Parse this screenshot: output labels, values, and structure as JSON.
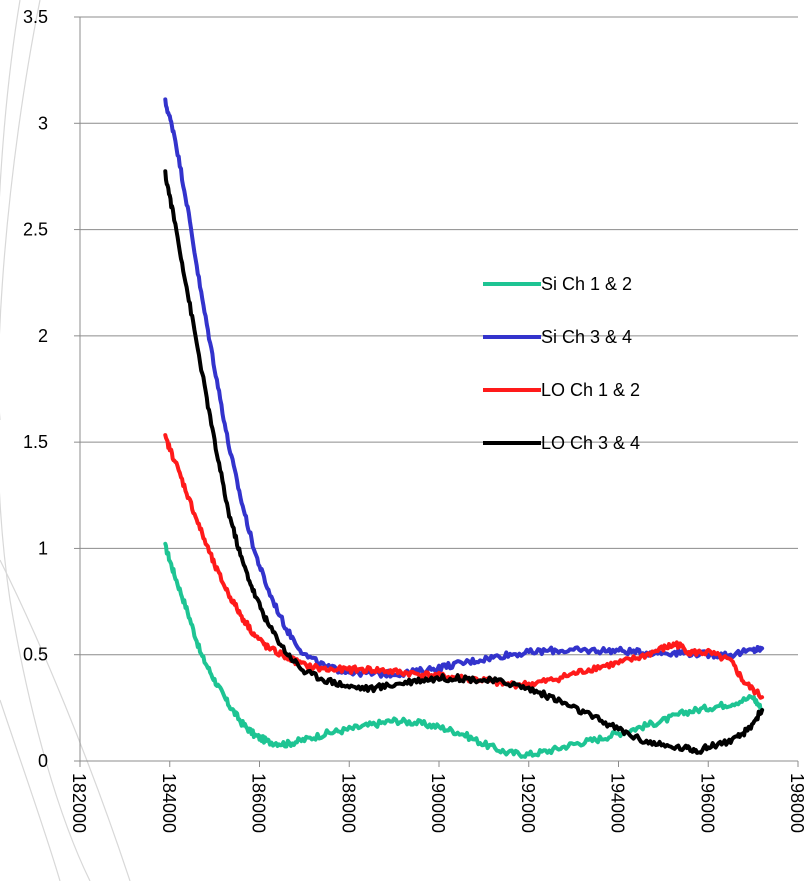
{
  "chart_data": {
    "type": "line",
    "title": "",
    "xlabel": "",
    "ylabel": "",
    "xlim": [
      182000,
      198000
    ],
    "ylim": [
      0,
      3.5
    ],
    "x_ticks": [
      182000,
      184000,
      186000,
      188000,
      190000,
      192000,
      194000,
      196000,
      198000
    ],
    "y_ticks": [
      0,
      0.5,
      1,
      1.5,
      2,
      2.5,
      3,
      3.5
    ],
    "y_tick_labels": [
      "0",
      "0.5",
      "1",
      "1.5",
      "2",
      "2.5",
      "3",
      "3.5"
    ],
    "grid": "horizontal",
    "legend_position": "right",
    "series": [
      {
        "name": "Si Ch 1 & 2",
        "color": "#1ec493",
        "points": [
          [
            183900,
            1.01
          ],
          [
            184100,
            0.88
          ],
          [
            184400,
            0.7
          ],
          [
            184700,
            0.5
          ],
          [
            185000,
            0.38
          ],
          [
            185300,
            0.27
          ],
          [
            185600,
            0.18
          ],
          [
            185900,
            0.12
          ],
          [
            186200,
            0.09
          ],
          [
            186600,
            0.08
          ],
          [
            187000,
            0.1
          ],
          [
            187500,
            0.13
          ],
          [
            188000,
            0.15
          ],
          [
            188500,
            0.17
          ],
          [
            189000,
            0.19
          ],
          [
            189500,
            0.18
          ],
          [
            190000,
            0.16
          ],
          [
            190500,
            0.13
          ],
          [
            191000,
            0.08
          ],
          [
            191500,
            0.04
          ],
          [
            192000,
            0.03
          ],
          [
            192500,
            0.05
          ],
          [
            193000,
            0.08
          ],
          [
            193500,
            0.1
          ],
          [
            194000,
            0.13
          ],
          [
            194500,
            0.16
          ],
          [
            195000,
            0.19
          ],
          [
            195500,
            0.23
          ],
          [
            196000,
            0.25
          ],
          [
            196500,
            0.27
          ],
          [
            197000,
            0.3
          ],
          [
            197200,
            0.24
          ]
        ]
      },
      {
        "name": "Si Ch 3 & 4",
        "color": "#3333cc",
        "points": [
          [
            183900,
            3.1
          ],
          [
            184100,
            2.95
          ],
          [
            184400,
            2.6
          ],
          [
            184700,
            2.2
          ],
          [
            185000,
            1.85
          ],
          [
            185300,
            1.5
          ],
          [
            185600,
            1.22
          ],
          [
            185900,
            0.98
          ],
          [
            186200,
            0.8
          ],
          [
            186600,
            0.62
          ],
          [
            187000,
            0.5
          ],
          [
            187500,
            0.44
          ],
          [
            188000,
            0.42
          ],
          [
            188500,
            0.41
          ],
          [
            189000,
            0.41
          ],
          [
            189500,
            0.42
          ],
          [
            190000,
            0.44
          ],
          [
            190500,
            0.46
          ],
          [
            191000,
            0.48
          ],
          [
            191500,
            0.5
          ],
          [
            192000,
            0.51
          ],
          [
            192500,
            0.52
          ],
          [
            193000,
            0.52
          ],
          [
            193500,
            0.52
          ],
          [
            194000,
            0.52
          ],
          [
            194500,
            0.51
          ],
          [
            195000,
            0.51
          ],
          [
            195500,
            0.51
          ],
          [
            196000,
            0.5
          ],
          [
            196500,
            0.5
          ],
          [
            197000,
            0.52
          ],
          [
            197200,
            0.53
          ]
        ]
      },
      {
        "name": "LO Ch 1 & 2",
        "color": "#ff1a1a",
        "points": [
          [
            183900,
            1.52
          ],
          [
            184100,
            1.42
          ],
          [
            184400,
            1.25
          ],
          [
            184700,
            1.08
          ],
          [
            185000,
            0.92
          ],
          [
            185300,
            0.79
          ],
          [
            185600,
            0.68
          ],
          [
            185900,
            0.59
          ],
          [
            186200,
            0.53
          ],
          [
            186600,
            0.49
          ],
          [
            187000,
            0.45
          ],
          [
            187500,
            0.43
          ],
          [
            188000,
            0.43
          ],
          [
            188500,
            0.43
          ],
          [
            189000,
            0.42
          ],
          [
            189500,
            0.41
          ],
          [
            190000,
            0.4
          ],
          [
            190500,
            0.39
          ],
          [
            191000,
            0.38
          ],
          [
            191500,
            0.36
          ],
          [
            192000,
            0.36
          ],
          [
            192500,
            0.38
          ],
          [
            193000,
            0.41
          ],
          [
            193500,
            0.44
          ],
          [
            194000,
            0.46
          ],
          [
            194500,
            0.49
          ],
          [
            195000,
            0.53
          ],
          [
            195300,
            0.55
          ],
          [
            195600,
            0.51
          ],
          [
            196000,
            0.51
          ],
          [
            196500,
            0.47
          ],
          [
            196800,
            0.37
          ],
          [
            197200,
            0.3
          ]
        ]
      },
      {
        "name": "LO Ch 3 & 4",
        "color": "#000000",
        "points": [
          [
            183900,
            2.76
          ],
          [
            184100,
            2.55
          ],
          [
            184400,
            2.2
          ],
          [
            184700,
            1.85
          ],
          [
            185000,
            1.5
          ],
          [
            185300,
            1.18
          ],
          [
            185600,
            0.95
          ],
          [
            185900,
            0.78
          ],
          [
            186200,
            0.64
          ],
          [
            186600,
            0.51
          ],
          [
            187000,
            0.42
          ],
          [
            187500,
            0.38
          ],
          [
            188000,
            0.35
          ],
          [
            188500,
            0.34
          ],
          [
            189000,
            0.36
          ],
          [
            189500,
            0.38
          ],
          [
            190000,
            0.39
          ],
          [
            190500,
            0.39
          ],
          [
            191000,
            0.38
          ],
          [
            191500,
            0.37
          ],
          [
            192000,
            0.34
          ],
          [
            192500,
            0.3
          ],
          [
            193000,
            0.25
          ],
          [
            193500,
            0.2
          ],
          [
            194000,
            0.15
          ],
          [
            194500,
            0.1
          ],
          [
            195000,
            0.07
          ],
          [
            195500,
            0.06
          ],
          [
            195800,
            0.05
          ],
          [
            196200,
            0.08
          ],
          [
            196600,
            0.1
          ],
          [
            196900,
            0.15
          ],
          [
            197200,
            0.24
          ]
        ]
      }
    ]
  }
}
